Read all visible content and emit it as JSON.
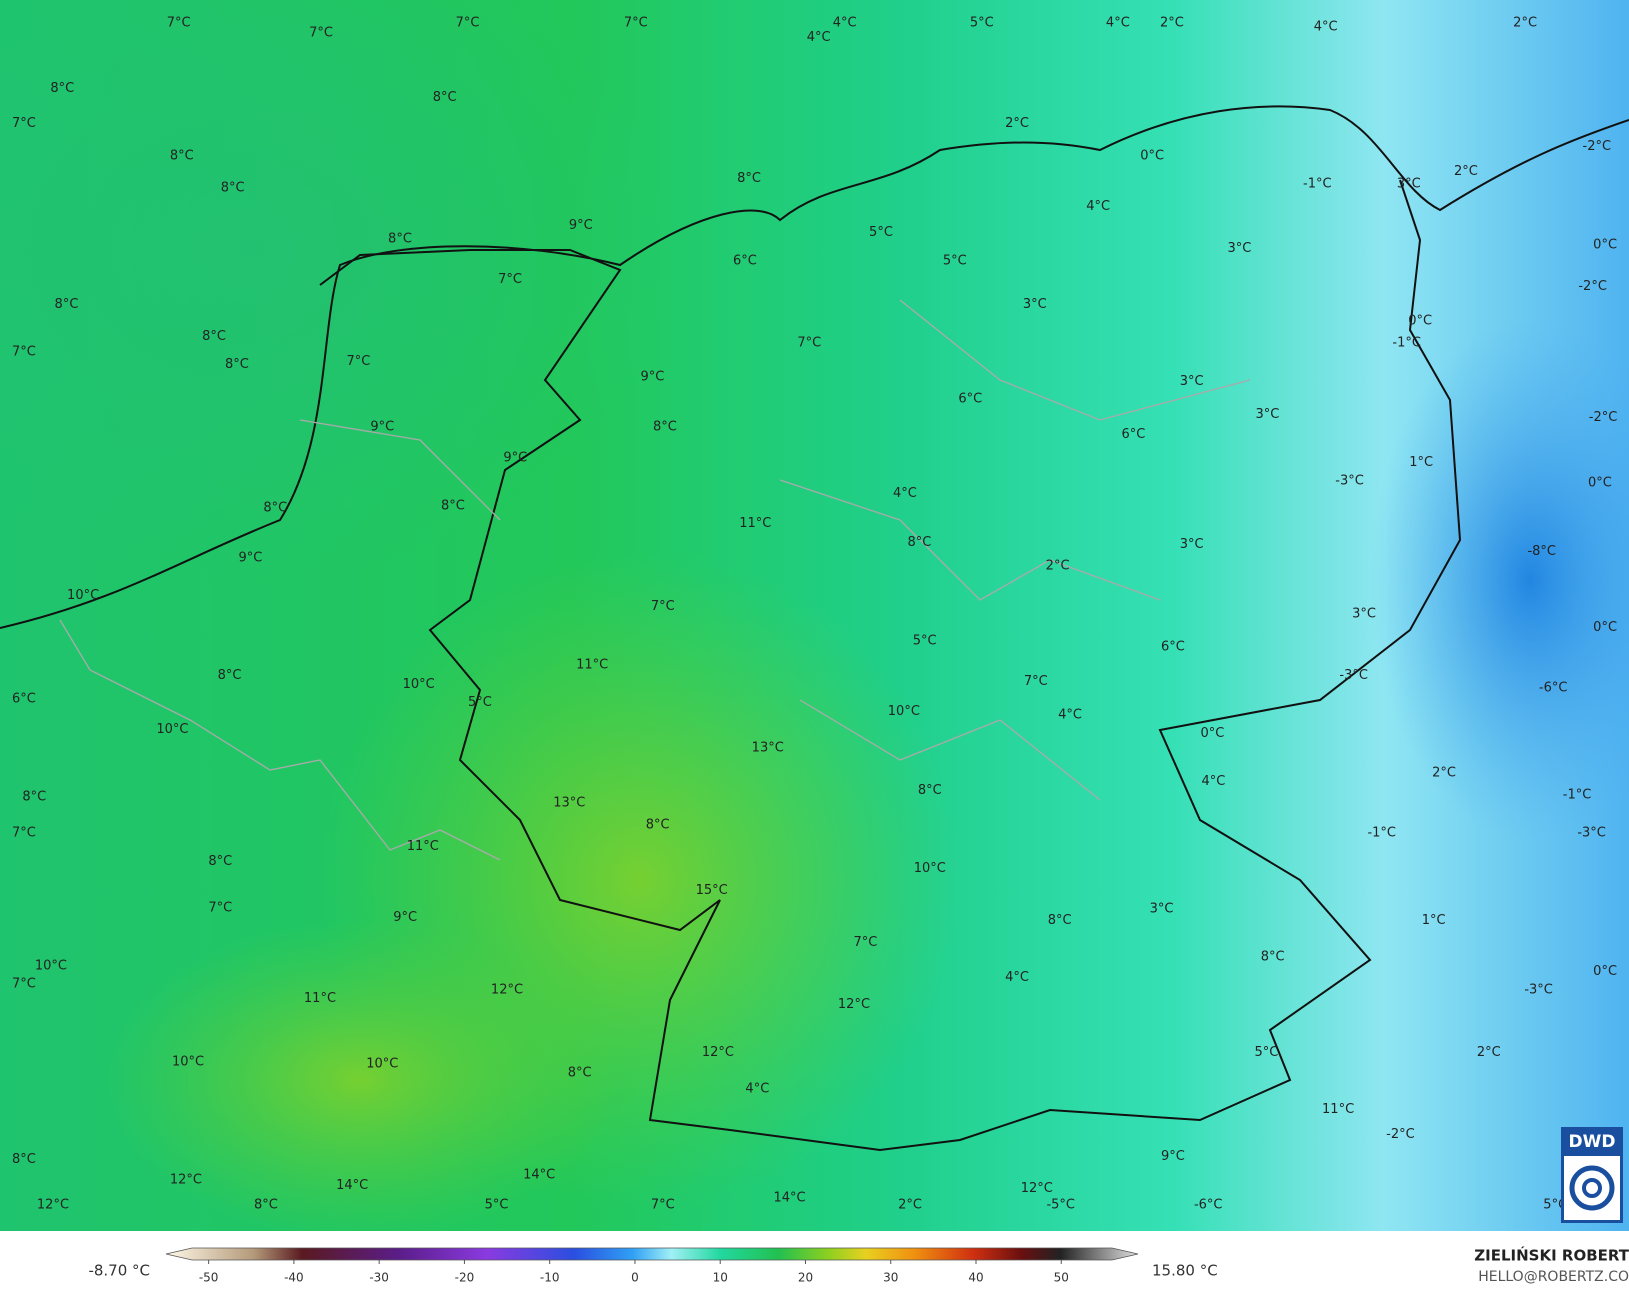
{
  "map": {
    "labels": [
      "7°C",
      "7°C",
      "7°C",
      "7°C",
      "4°C",
      "4°C",
      "5°C",
      "4°C",
      "2°C",
      "4°C",
      "2°C",
      "8°C",
      "7°C",
      "8°C",
      "8°C",
      "8°C",
      "2°C",
      "0°C",
      "-2°C",
      "2°C",
      "-1°C",
      "3°C",
      "8°C",
      "4°C",
      "9°C",
      "8°C",
      "5°C",
      "6°C",
      "5°C",
      "7°C",
      "0°C",
      "3°C",
      "-2°C",
      "8°C",
      "3°C",
      "8°C",
      "0°C",
      "7°C",
      "-1°C",
      "7°C",
      "8°C",
      "7°C",
      "9°C",
      "3°C",
      "6°C",
      "3°C",
      "-2°C",
      "9°C",
      "8°C",
      "6°C",
      "9°C",
      "1°C",
      "-3°C",
      "0°C",
      "4°C",
      "8°C",
      "8°C",
      "11°C",
      "8°C",
      "3°C",
      "-8°C",
      "9°C",
      "2°C",
      "10°C",
      "7°C",
      "3°C",
      "0°C",
      "5°C",
      "6°C",
      "11°C",
      "8°C",
      "10°C",
      "7°C",
      "-3°C",
      "-6°C",
      "6°C",
      "5°C",
      "10°C",
      "4°C",
      "10°C",
      "0°C",
      "13°C",
      "2°C",
      "4°C",
      "8°C",
      "8°C",
      "-1°C",
      "13°C",
      "8°C",
      "7°C",
      "-1°C",
      "-3°C",
      "11°C",
      "8°C",
      "10°C",
      "15°C",
      "7°C",
      "3°C",
      "9°C",
      "8°C",
      "1°C",
      "7°C",
      "8°C",
      "10°C",
      "7°C",
      "4°C",
      "0°C",
      "-3°C",
      "12°C",
      "11°C",
      "12°C",
      "8°C",
      "10°C",
      "10°C",
      "12°C",
      "5°C",
      "2°C",
      "4°C",
      "11°C",
      "-2°C",
      "9°C",
      "8°C",
      "12°C",
      "14°C",
      "14°C",
      "12°C",
      "12°C",
      "8°C",
      "5°C",
      "7°C",
      "14°C",
      "2°C",
      "-5°C",
      "-6°C",
      "5°C"
    ],
    "logo": "DWD"
  },
  "colorbar": {
    "min_label": "-8.70 °C",
    "max_label": "15.80 °C",
    "clim": [
      -55,
      59
    ],
    "ticks": [
      -50,
      -40,
      -30,
      -20,
      -10,
      0,
      10,
      20,
      30,
      40,
      50
    ]
  },
  "credit": {
    "name": "ZIELIŃSKI ROBERT",
    "email": "HELLO@ROBERTZ.CO"
  }
}
